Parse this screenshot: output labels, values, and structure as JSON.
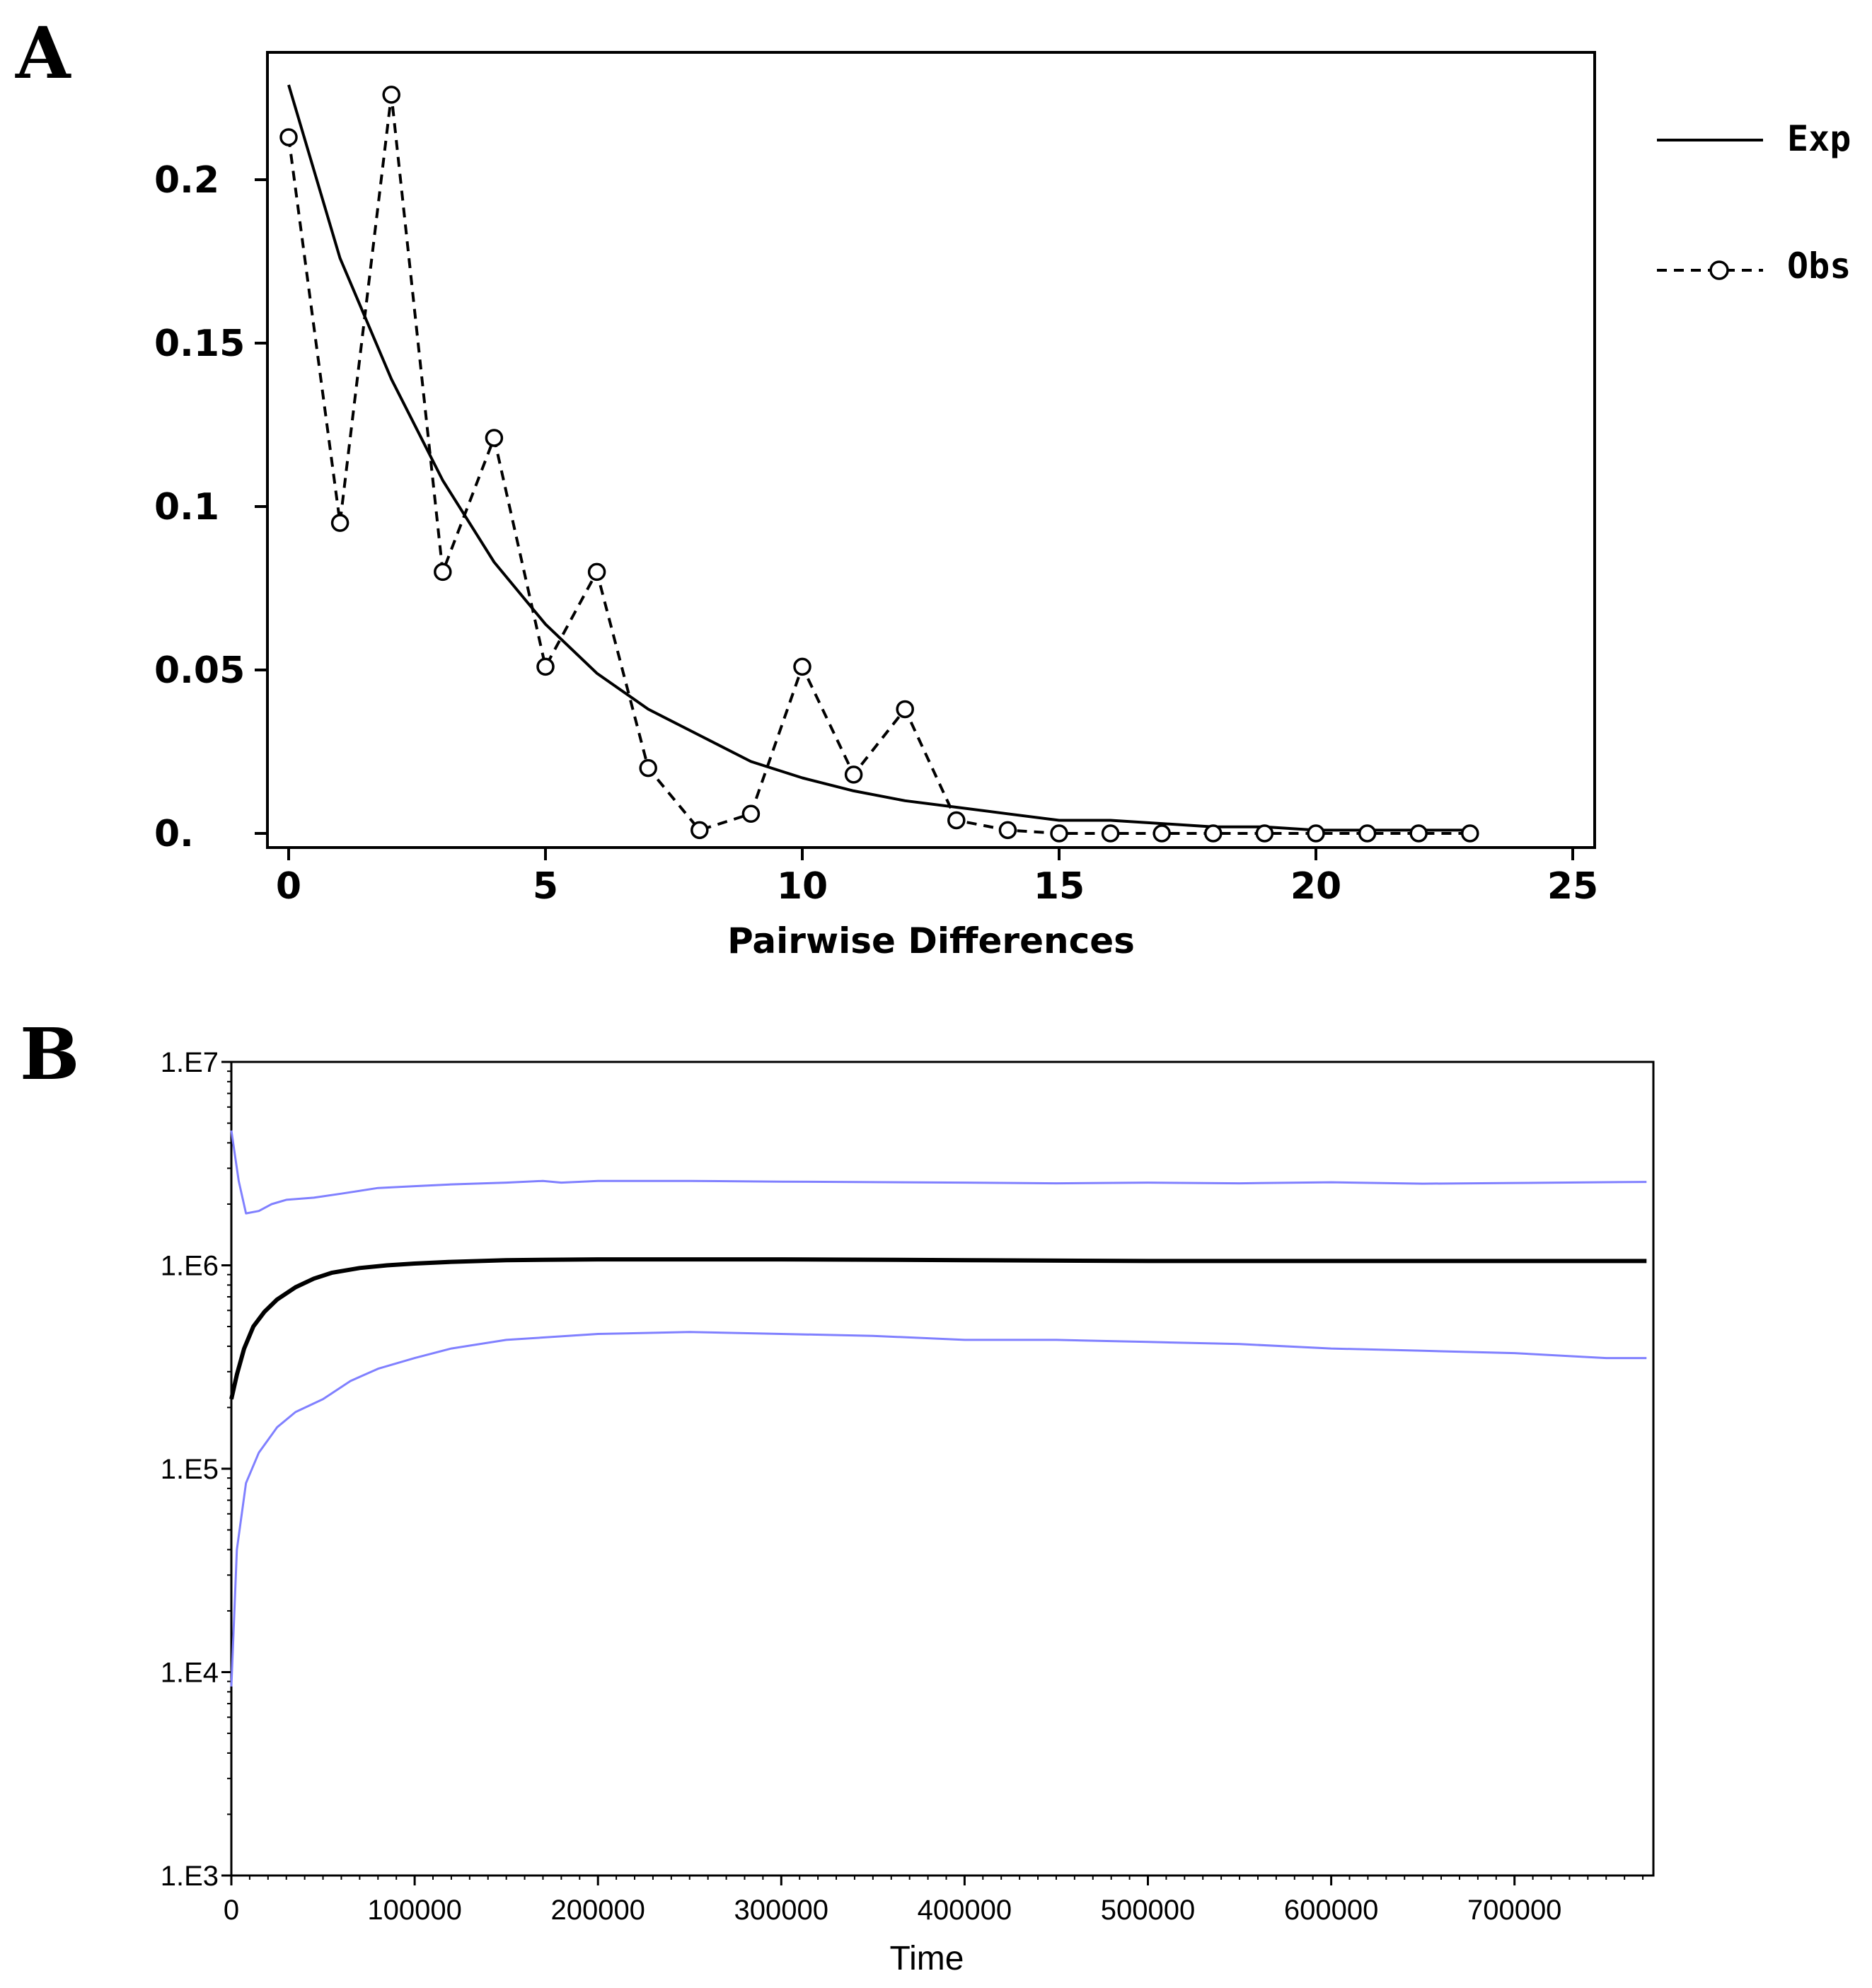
{
  "chart_data": [
    {
      "panel": "A",
      "type": "line",
      "xlabel": "Pairwise Differences",
      "ylabel": "",
      "xlim": [
        0,
        25
      ],
      "ylim": [
        0,
        0.24
      ],
      "x_ticks": [
        0,
        5,
        10,
        15,
        20,
        25
      ],
      "x_tick_labels": [
        "0",
        "5",
        "10",
        "15",
        "20",
        "25"
      ],
      "y_ticks": [
        0,
        0.05,
        0.1,
        0.15,
        0.2
      ],
      "y_tick_labels": [
        "0.",
        "0.05",
        "0.1",
        "0.15",
        "0.2"
      ],
      "legend_position": "right",
      "series": [
        {
          "name": "Exp",
          "style": "solid",
          "x": [
            0,
            1,
            2,
            3,
            4,
            5,
            6,
            7,
            8,
            9,
            10,
            11,
            12,
            13,
            14,
            15,
            16,
            17,
            18,
            19,
            20,
            21,
            22,
            23
          ],
          "values": [
            0.229,
            0.176,
            0.139,
            0.108,
            0.083,
            0.064,
            0.049,
            0.038,
            0.03,
            0.022,
            0.017,
            0.013,
            0.01,
            0.008,
            0.006,
            0.004,
            0.004,
            0.003,
            0.002,
            0.002,
            0.001,
            0.001,
            0.001,
            0.001
          ]
        },
        {
          "name": "Obs",
          "style": "dashed",
          "marker": "circle",
          "x": [
            0,
            1,
            2,
            3,
            4,
            5,
            6,
            7,
            8,
            9,
            10,
            11,
            12,
            13,
            14,
            15,
            16,
            17,
            18,
            19,
            20,
            21,
            22,
            23
          ],
          "values": [
            0.213,
            0.095,
            0.226,
            0.08,
            0.121,
            0.051,
            0.08,
            0.02,
            0.001,
            0.006,
            0.051,
            0.018,
            0.038,
            0.004,
            0.001,
            0.0,
            0.0,
            0.0,
            0.0,
            0.0,
            0.0,
            0.0,
            0.0,
            0.0
          ]
        }
      ]
    },
    {
      "panel": "B",
      "type": "line",
      "xlabel": "Time",
      "ylabel": "",
      "yscale": "log",
      "xlim": [
        0,
        775000
      ],
      "ylim": [
        1000,
        10000000
      ],
      "x_ticks": [
        0,
        100000,
        200000,
        300000,
        400000,
        500000,
        600000,
        700000
      ],
      "x_tick_labels": [
        "0",
        "100000",
        "200000",
        "300000",
        "400000",
        "500000",
        "600000",
        "700000"
      ],
      "y_ticks": [
        1000,
        10000,
        100000,
        1000000,
        10000000
      ],
      "y_tick_labels": [
        "1.E3",
        "1.E4",
        "1.E5",
        "1.E6",
        "1.E7"
      ],
      "series": [
        {
          "name": "median",
          "color": "#000000",
          "x": [
            0,
            3000,
            7000,
            12000,
            18000,
            25000,
            35000,
            45000,
            55000,
            70000,
            85000,
            100000,
            120000,
            150000,
            200000,
            250000,
            300000,
            400000,
            500000,
            600000,
            700000,
            772000
          ],
          "values": [
            220000,
            290000,
            390000,
            500000,
            590000,
            680000,
            780000,
            860000,
            920000,
            970000,
            1000000,
            1020000,
            1040000,
            1060000,
            1070000,
            1070000,
            1070000,
            1060000,
            1050000,
            1050000,
            1050000,
            1050000
          ]
        },
        {
          "name": "upper",
          "color": "#8080ff",
          "x": [
            0,
            4000,
            8000,
            15000,
            22000,
            30000,
            45000,
            60000,
            80000,
            100000,
            120000,
            150000,
            170000,
            180000,
            200000,
            250000,
            300000,
            400000,
            450000,
            500000,
            550000,
            600000,
            650000,
            700000,
            772000
          ],
          "values": [
            4600000,
            2600000,
            1800000,
            1850000,
            2000000,
            2100000,
            2150000,
            2250000,
            2400000,
            2450000,
            2500000,
            2550000,
            2600000,
            2550000,
            2600000,
            2600000,
            2580000,
            2550000,
            2530000,
            2550000,
            2530000,
            2560000,
            2520000,
            2540000,
            2570000
          ]
        },
        {
          "name": "lower",
          "color": "#8080ff",
          "x": [
            0,
            3000,
            8000,
            15000,
            25000,
            35000,
            50000,
            65000,
            80000,
            100000,
            120000,
            150000,
            200000,
            250000,
            300000,
            350000,
            400000,
            450000,
            500000,
            550000,
            600000,
            650000,
            700000,
            750000,
            772000
          ],
          "values": [
            8500,
            40000,
            85000,
            120000,
            160000,
            190000,
            220000,
            270000,
            310000,
            350000,
            390000,
            430000,
            460000,
            470000,
            460000,
            450000,
            430000,
            430000,
            420000,
            410000,
            390000,
            380000,
            370000,
            350000,
            350000
          ]
        }
      ]
    }
  ],
  "labels": {
    "panel_a": "A",
    "panel_b": "B",
    "legend_exp": "Exp",
    "legend_obs": "Obs"
  },
  "colors": {
    "axis": "#000000",
    "exp_line": "#000000",
    "obs_line": "#000000",
    "median_line": "#000000",
    "ci_lines": "#8080ff"
  }
}
